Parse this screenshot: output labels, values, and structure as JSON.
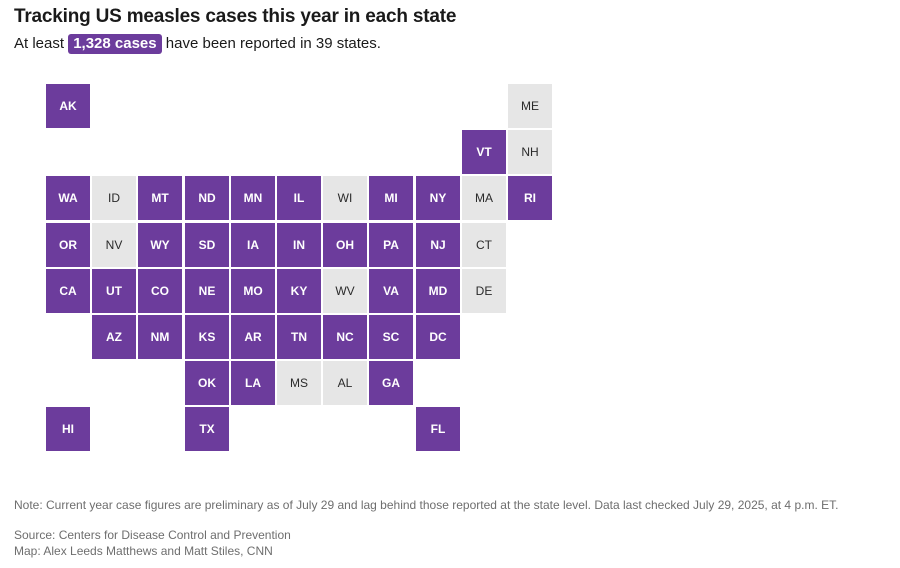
{
  "header": {
    "title": "Tracking US measles cases this year in each state",
    "subtitle_prefix": "At least",
    "subtitle_badge": "1,328 cases",
    "subtitle_suffix": "have been reported in 39 states."
  },
  "colors": {
    "reported": "#6c3c9c",
    "not_reported": "#e6e6e6"
  },
  "states": [
    {
      "code": "AK",
      "col": 0,
      "row": 0,
      "reported": true
    },
    {
      "code": "ME",
      "col": 10,
      "row": 0,
      "reported": false
    },
    {
      "code": "VT",
      "col": 9,
      "row": 1,
      "reported": true
    },
    {
      "code": "NH",
      "col": 10,
      "row": 1,
      "reported": false
    },
    {
      "code": "WA",
      "col": 0,
      "row": 2,
      "reported": true
    },
    {
      "code": "ID",
      "col": 1,
      "row": 2,
      "reported": false
    },
    {
      "code": "MT",
      "col": 2,
      "row": 2,
      "reported": true
    },
    {
      "code": "ND",
      "col": 3,
      "row": 2,
      "reported": true
    },
    {
      "code": "MN",
      "col": 4,
      "row": 2,
      "reported": true
    },
    {
      "code": "IL",
      "col": 5,
      "row": 2,
      "reported": true
    },
    {
      "code": "WI",
      "col": 6,
      "row": 2,
      "reported": false
    },
    {
      "code": "MI",
      "col": 7,
      "row": 2,
      "reported": true
    },
    {
      "code": "NY",
      "col": 8,
      "row": 2,
      "reported": true
    },
    {
      "code": "MA",
      "col": 9,
      "row": 2,
      "reported": false
    },
    {
      "code": "RI",
      "col": 10,
      "row": 2,
      "reported": true
    },
    {
      "code": "OR",
      "col": 0,
      "row": 3,
      "reported": true
    },
    {
      "code": "NV",
      "col": 1,
      "row": 3,
      "reported": false
    },
    {
      "code": "WY",
      "col": 2,
      "row": 3,
      "reported": true
    },
    {
      "code": "SD",
      "col": 3,
      "row": 3,
      "reported": true
    },
    {
      "code": "IA",
      "col": 4,
      "row": 3,
      "reported": true
    },
    {
      "code": "IN",
      "col": 5,
      "row": 3,
      "reported": true
    },
    {
      "code": "OH",
      "col": 6,
      "row": 3,
      "reported": true
    },
    {
      "code": "PA",
      "col": 7,
      "row": 3,
      "reported": true
    },
    {
      "code": "NJ",
      "col": 8,
      "row": 3,
      "reported": true
    },
    {
      "code": "CT",
      "col": 9,
      "row": 3,
      "reported": false
    },
    {
      "code": "CA",
      "col": 0,
      "row": 4,
      "reported": true
    },
    {
      "code": "UT",
      "col": 1,
      "row": 4,
      "reported": true
    },
    {
      "code": "CO",
      "col": 2,
      "row": 4,
      "reported": true
    },
    {
      "code": "NE",
      "col": 3,
      "row": 4,
      "reported": true
    },
    {
      "code": "MO",
      "col": 4,
      "row": 4,
      "reported": true
    },
    {
      "code": "KY",
      "col": 5,
      "row": 4,
      "reported": true
    },
    {
      "code": "WV",
      "col": 6,
      "row": 4,
      "reported": false
    },
    {
      "code": "VA",
      "col": 7,
      "row": 4,
      "reported": true
    },
    {
      "code": "MD",
      "col": 8,
      "row": 4,
      "reported": true
    },
    {
      "code": "DE",
      "col": 9,
      "row": 4,
      "reported": false
    },
    {
      "code": "AZ",
      "col": 1,
      "row": 5,
      "reported": true
    },
    {
      "code": "NM",
      "col": 2,
      "row": 5,
      "reported": true
    },
    {
      "code": "KS",
      "col": 3,
      "row": 5,
      "reported": true
    },
    {
      "code": "AR",
      "col": 4,
      "row": 5,
      "reported": true
    },
    {
      "code": "TN",
      "col": 5,
      "row": 5,
      "reported": true
    },
    {
      "code": "NC",
      "col": 6,
      "row": 5,
      "reported": true
    },
    {
      "code": "SC",
      "col": 7,
      "row": 5,
      "reported": true
    },
    {
      "code": "DC",
      "col": 8,
      "row": 5,
      "reported": true
    },
    {
      "code": "OK",
      "col": 3,
      "row": 6,
      "reported": true
    },
    {
      "code": "LA",
      "col": 4,
      "row": 6,
      "reported": true
    },
    {
      "code": "MS",
      "col": 5,
      "row": 6,
      "reported": false
    },
    {
      "code": "AL",
      "col": 6,
      "row": 6,
      "reported": false
    },
    {
      "code": "GA",
      "col": 7,
      "row": 6,
      "reported": true
    },
    {
      "code": "HI",
      "col": 0,
      "row": 7,
      "reported": true
    },
    {
      "code": "TX",
      "col": 3,
      "row": 7,
      "reported": true
    },
    {
      "code": "FL",
      "col": 8,
      "row": 7,
      "reported": true
    }
  ],
  "footer": {
    "note": "Note: Current year case figures are preliminary as of July 29 and lag behind those reported at the state level. Data last checked July 29, 2025, at 4 p.m. ET.",
    "source": "Source: Centers for Disease Control and Prevention",
    "credit": "Map: Alex Leeds Matthews and Matt Stiles, CNN"
  }
}
